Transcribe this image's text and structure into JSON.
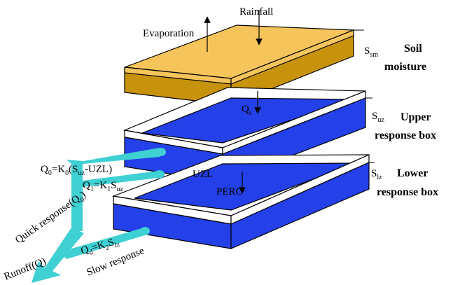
{
  "labels": {
    "rainfall": "Rainfall",
    "evaporation": "Evaporation",
    "s_sm_main": "S",
    "s_sm_sub": "sm",
    "soil_moisture_line1": "Soil",
    "soil_moisture_line2": "moisture",
    "qs_main": "Q",
    "qs_sub": "s",
    "s_uz_main": "S",
    "s_uz_sub": "uz",
    "upper_line1": "Upper",
    "upper_line2": "response box",
    "q0_a": "Q",
    "q0_a_sub": "0",
    "q0_b": "=K",
    "q0_b_sub": "0",
    "q0_c": "(S",
    "q0_c_sub": "uz",
    "q0_d": "-UZL)",
    "q1_a": "Q",
    "q1_a_sub": "1",
    "q1_b": "=K",
    "q1_b_sub": "1",
    "q1_c": "S",
    "q1_c_sub": "uz",
    "uzl": "UZL",
    "perc": "PERC",
    "s_lz_main": "S",
    "s_lz_sub": "lz",
    "lower_line1": "Lower",
    "lower_line2": "response box",
    "quick_a": "Quick response(Q",
    "quick_sub": "0",
    "quick_b": ")",
    "qd_a": "Q",
    "qd_a_sub": "d",
    "qd_b": "=K",
    "qd_b_sub": "2",
    "qd_c": "S",
    "qd_c_sub": "lz",
    "slow": "Slow response",
    "runoff": "Runoff(Q)"
  },
  "colors": {
    "soil_top": "#f5c45b",
    "soil_side": "#c8930c",
    "water_blue": "#2440e8",
    "water_blue_dark": "#1a32c4",
    "rim_white": "#ffffff",
    "flow_cyan": "#3fd0d3"
  }
}
